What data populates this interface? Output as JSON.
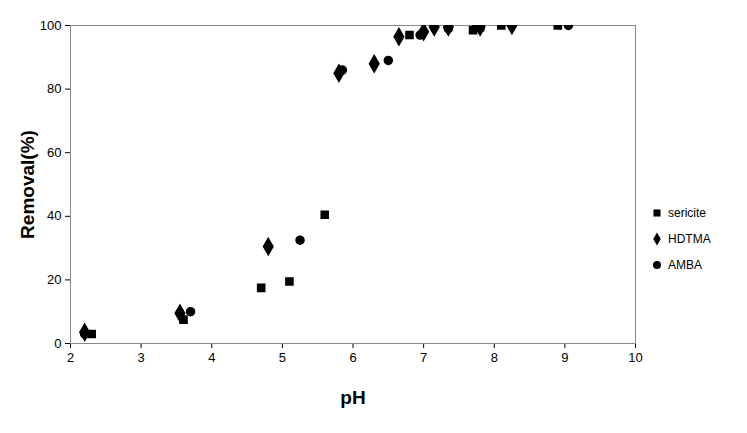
{
  "chart_data": {
    "type": "scatter",
    "x_label": "pH",
    "y_label": "Removal(%)",
    "xlim": [
      2,
      10
    ],
    "xticks": [
      2,
      3,
      4,
      5,
      6,
      7,
      8,
      9,
      10
    ],
    "ylim": [
      0,
      100
    ],
    "yticks": [
      0,
      20,
      40,
      60,
      80,
      100
    ],
    "grid": false,
    "legend": "right",
    "series": [
      {
        "name": "sericite",
        "color": "#000000",
        "marker": "square",
        "x": [
          2.3,
          3.6,
          4.7,
          5.1,
          5.6,
          6.8,
          7.7,
          7.8,
          8.1,
          8.9
        ],
        "values": [
          3,
          7.5,
          17.5,
          19.5,
          40.5,
          97,
          98.5,
          99.5,
          100,
          100
        ]
      },
      {
        "name": "HDTMA",
        "color": "#000000",
        "marker": "diamond",
        "x": [
          2.2,
          3.55,
          4.8,
          5.8,
          6.3,
          6.65,
          7.0,
          7.15,
          7.35,
          7.8,
          8.25
        ],
        "values": [
          3.5,
          9.5,
          30.5,
          85,
          88,
          96.5,
          98,
          99.5,
          99.5,
          99.5,
          100
        ]
      },
      {
        "name": "AMBA",
        "color": "#000000",
        "marker": "circle",
        "x": [
          2.2,
          3.7,
          5.25,
          5.85,
          6.5,
          6.95,
          7.35,
          7.75,
          9.05
        ],
        "values": [
          3,
          10,
          32.5,
          86,
          89,
          97,
          99,
          100,
          100
        ]
      }
    ]
  }
}
